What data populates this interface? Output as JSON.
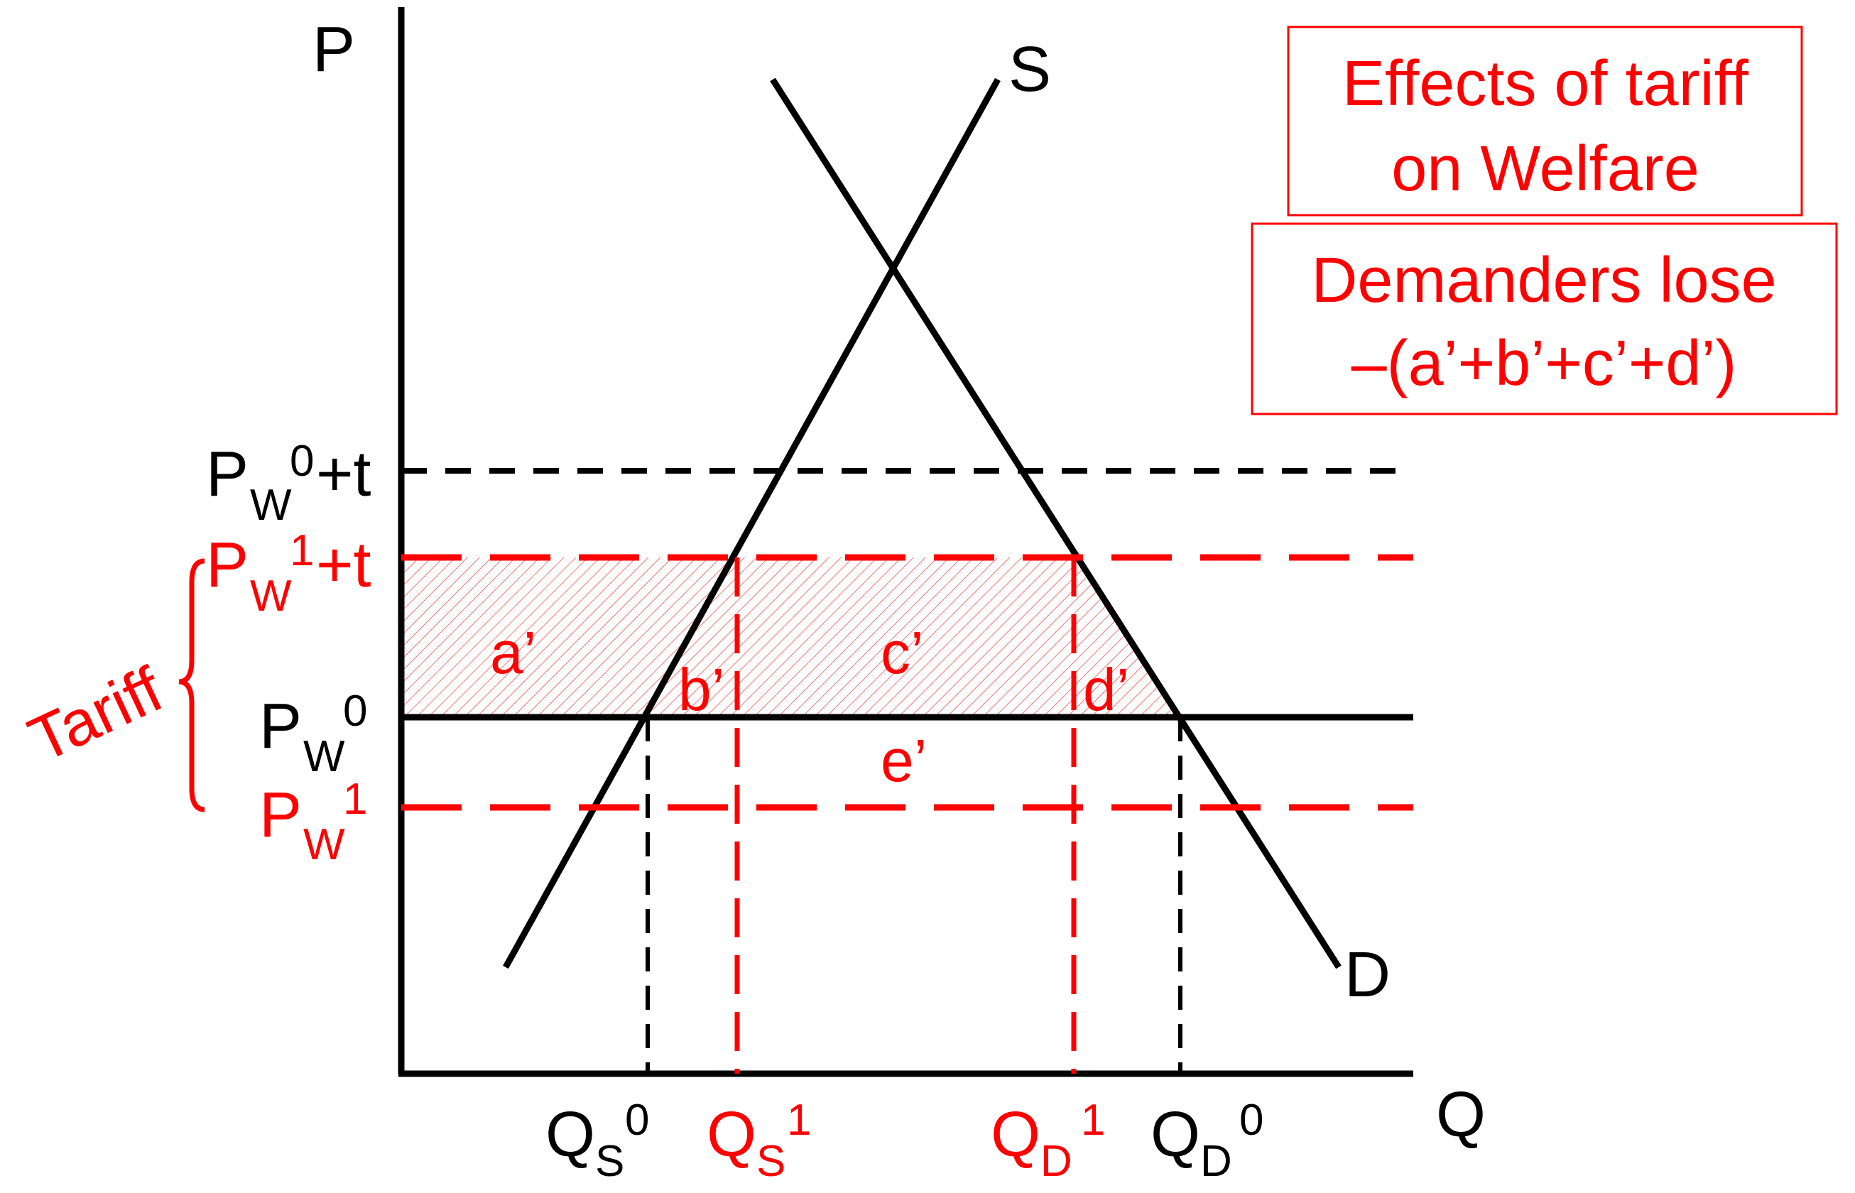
{
  "colors": {
    "black": "#000000",
    "red": "#ff0000",
    "box_border": "#ff0000",
    "hatch": "#ff0000"
  },
  "axes": {
    "y_label": "P",
    "x_label": "Q"
  },
  "curves": {
    "supply_label": "S",
    "demand_label": "D"
  },
  "price_labels": {
    "pw0_plus_t": {
      "base": "P",
      "sub": "W",
      "sup": "0",
      "tail": "+t"
    },
    "pw1_plus_t": {
      "base": "P",
      "sub": "W",
      "sup": "1",
      "tail": "+t"
    },
    "pw0": {
      "base": "P",
      "sub": "W",
      "sup": "0"
    },
    "pw1": {
      "base": "P",
      "sub": "W",
      "sup": "1"
    }
  },
  "quantity_labels": {
    "qs0": {
      "base": "Q",
      "sub": "S",
      "sup": "0"
    },
    "qs1": {
      "base": "Q",
      "sub": "S",
      "sup": "1"
    },
    "qd1": {
      "base": "Q",
      "sub": "D",
      "sup": "1"
    },
    "qd0": {
      "base": "Q",
      "sub": "D",
      "sup": "0"
    }
  },
  "regions": {
    "a": "a’",
    "b": "b’",
    "c": "c’",
    "d": "d’",
    "e": "e’"
  },
  "tariff_label": "Tariff",
  "title_box": {
    "line1": "Effects of tariff",
    "line2": "on Welfare"
  },
  "info_box": {
    "line1": "Demanders lose",
    "line2": "–(a’+b’+c’+d’)"
  }
}
